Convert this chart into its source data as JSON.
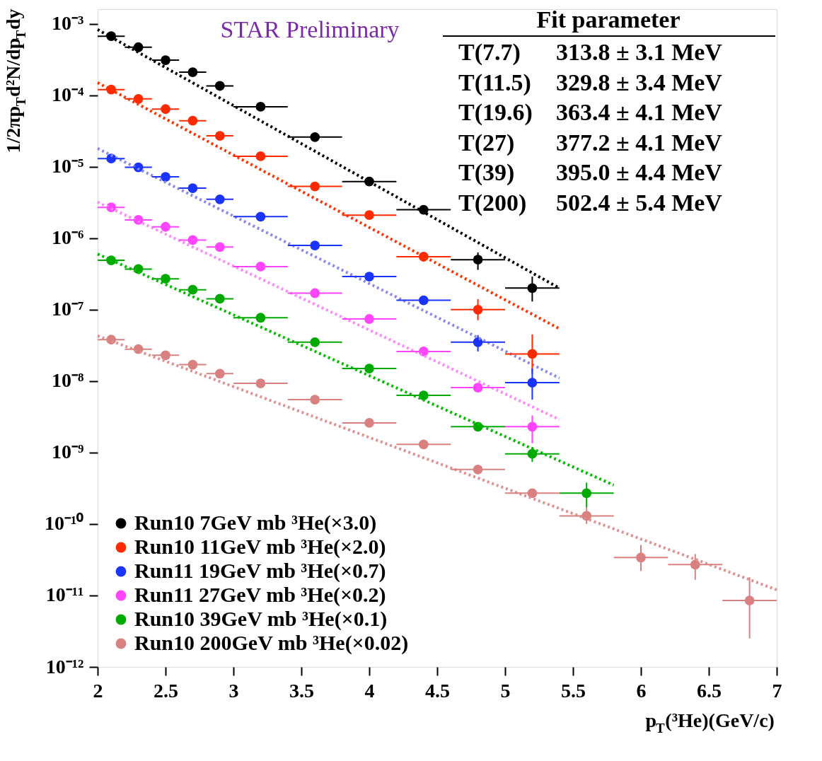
{
  "chart_data": {
    "type": "scatter",
    "xlabel": "p$_{T}$(³He)(GeV/c)",
    "ylabel": "1/2πp$_{T}$d²N/dp$_{T}$dy",
    "log": "y",
    "grid": false,
    "legend": "bottom left",
    "xlim": [
      2,
      7
    ],
    "xticks": [
      2,
      2.5,
      3,
      3.5,
      4,
      4.5,
      5,
      5.5,
      6,
      6.5,
      7
    ],
    "ylim": [
      1e-12,
      0.0016
    ],
    "yticks": [
      {
        "value": 0.001,
        "label": "10⁻³"
      },
      {
        "value": 0.0001,
        "label": "10⁻⁴"
      },
      {
        "value": 1e-05,
        "label": "10⁻⁵"
      },
      {
        "value": 1e-06,
        "label": "10⁻⁶"
      },
      {
        "value": 1e-07,
        "label": "10⁻⁷"
      },
      {
        "value": 1e-08,
        "label": "10⁻⁸"
      },
      {
        "value": 1e-09,
        "label": "10⁻⁹"
      },
      {
        "value": 1e-10,
        "label": "10⁻¹⁰"
      },
      {
        "value": 1e-11,
        "label": "10⁻¹¹"
      },
      {
        "value": 1e-12,
        "label": "10⁻¹²"
      }
    ],
    "annotations": [
      "STAR Preliminary",
      "Fit parameter",
      "T(7.7)",
      "313.8 ± 3.1 MeV",
      "T(11.5)",
      "329.8 ± 3.4 MeV",
      "T(19.6)",
      "363.4 ± 4.1 MeV",
      "T(27)",
      "377.2 ± 4.1 MeV",
      "T(39)",
      "395.0 ± 4.4 MeV",
      "T(200)",
      "502.4 ± 5.4 MeV"
    ],
    "series": [
      {
        "type": "line",
        "color": "#000000",
        "line_style": "dotted",
        "x": [
          2.0,
          5.4
        ],
        "values": [
          0.00083,
          2e-07
        ]
      },
      {
        "type": "line",
        "color": "#ff3300",
        "line_style": "dotted",
        "x": [
          2.0,
          5.4
        ],
        "values": [
          0.00015,
          5.4e-08
        ]
      },
      {
        "type": "line",
        "color": "#8888ee",
        "line_style": "dotted",
        "x": [
          2.0,
          5.4
        ],
        "values": [
          1.8e-05,
          1.1e-08
        ]
      },
      {
        "type": "line",
        "color": "#ff88ff",
        "line_style": "dotted",
        "x": [
          2.0,
          5.4
        ],
        "values": [
          3.2e-06,
          2.9e-09
        ]
      },
      {
        "type": "line",
        "color": "#00bb00",
        "line_style": "dotted",
        "x": [
          2.0,
          5.8
        ],
        "values": [
          6e-07,
          3.5e-10
        ]
      },
      {
        "type": "line",
        "color": "#e09090",
        "line_style": "dotted",
        "x": [
          2.0,
          7.0
        ],
        "values": [
          4.3e-08,
          1.2e-11
        ]
      },
      {
        "marker": "circle",
        "name": "Run10 7GeV mb ³He(×3.0)",
        "color": "#000000",
        "x": [
          2.1,
          2.3,
          2.5,
          2.7,
          2.9,
          3.2,
          3.6,
          4.0,
          4.4,
          4.8,
          5.2
        ],
        "values": [
          0.00067,
          0.00047,
          0.00031,
          0.00021,
          0.000135,
          6.9e-05,
          2.6e-05,
          6.2e-06,
          2.5e-06,
          5e-07,
          2e-07
        ],
        "xerrors": [
          0.1,
          0.1,
          0.1,
          0.1,
          0.1,
          0.2,
          0.2,
          0.2,
          0.2,
          0.2,
          0.2
        ],
        "errors": [
          null,
          null,
          null,
          null,
          null,
          null,
          null,
          null,
          null,
          [
            3.6e-07,
            6.3e-07
          ],
          [
            1.3e-07,
            2.9e-07
          ]
        ]
      },
      {
        "marker": "circle",
        "name": "Run10 11GeV mb ³He(×2.0)",
        "color": "#ff2a00",
        "x": [
          2.1,
          2.3,
          2.5,
          2.7,
          2.9,
          3.2,
          3.6,
          4.0,
          4.4,
          4.8,
          5.2
        ],
        "values": [
          0.00012,
          8.9e-05,
          6.4e-05,
          4.4e-05,
          2.7e-05,
          1.4e-05,
          5.3e-06,
          2.1e-06,
          5.5e-07,
          1e-07,
          2.4e-08
        ],
        "xerrors": [
          0.1,
          0.1,
          0.1,
          0.1,
          0.1,
          0.2,
          0.2,
          0.2,
          0.2,
          0.2,
          0.2
        ],
        "errors": [
          null,
          null,
          null,
          null,
          null,
          null,
          null,
          null,
          null,
          [
            7.1e-08,
            1.4e-07
          ],
          [
            1.26e-08,
            4.5e-08
          ]
        ]
      },
      {
        "marker": "circle",
        "name": "Run11 19GeV mb ³He(×0.7)",
        "color": "#1a33ff",
        "x": [
          2.1,
          2.3,
          2.5,
          2.7,
          2.9,
          3.2,
          3.6,
          4.0,
          4.4,
          4.8,
          5.2
        ],
        "values": [
          1.3e-05,
          9.8e-06,
          7.2e-06,
          5e-06,
          3.5e-06,
          2e-06,
          7.9e-07,
          2.9e-07,
          1.35e-07,
          3.5e-08,
          9.5e-09
        ],
        "xerrors": [
          0.1,
          0.1,
          0.1,
          0.1,
          0.1,
          0.2,
          0.2,
          0.2,
          0.2,
          0.2,
          0.2
        ],
        "errors": [
          null,
          null,
          null,
          null,
          null,
          null,
          null,
          null,
          null,
          [
            2.6e-08,
            4.4e-08
          ],
          [
            5.5e-09,
            1.5e-08
          ]
        ]
      },
      {
        "marker": "circle",
        "name": "Run11 27GeV mb ³He(×0.2)",
        "color": "#ff44ff",
        "x": [
          2.1,
          2.3,
          2.5,
          2.7,
          2.9,
          3.2,
          3.6,
          4.0,
          4.4,
          4.8,
          5.2
        ],
        "values": [
          2.7e-06,
          1.8e-06,
          1.44e-06,
          9.4e-07,
          7.5e-07,
          4e-07,
          1.7e-07,
          7.4e-08,
          2.6e-08,
          8.1e-09,
          2.3e-09
        ],
        "xerrors": [
          0.1,
          0.1,
          0.1,
          0.1,
          0.1,
          0.2,
          0.2,
          0.2,
          0.2,
          0.2,
          0.2
        ],
        "errors": [
          null,
          null,
          null,
          null,
          null,
          null,
          null,
          null,
          null,
          null,
          [
            1.35e-09,
            3.3e-09
          ]
        ]
      },
      {
        "marker": "circle",
        "name": "Run10 39GeV mb ³He(×0.1)",
        "color": "#00aa00",
        "x": [
          2.1,
          2.3,
          2.5,
          2.7,
          2.9,
          3.2,
          3.6,
          4.0,
          4.4,
          4.8,
          5.2,
          5.6
        ],
        "values": [
          4.9e-07,
          3.7e-07,
          2.7e-07,
          1.9e-07,
          1.42e-07,
          7.7e-08,
          3.5e-08,
          1.5e-08,
          6.3e-09,
          2.3e-09,
          9.6e-10,
          2.7e-10
        ],
        "xerrors": [
          0.1,
          0.1,
          0.1,
          0.1,
          0.1,
          0.2,
          0.2,
          0.2,
          0.2,
          0.2,
          0.2,
          0.2
        ],
        "errors": [
          null,
          null,
          null,
          null,
          null,
          null,
          null,
          null,
          null,
          null,
          [
            7.4e-10,
            1.2e-09
          ],
          [
            1.7e-10,
            3.8e-10
          ]
        ]
      },
      {
        "marker": "circle",
        "name": "Run10 200GeV mb ³He(×0.02)",
        "color": "#d98080",
        "x": [
          2.1,
          2.3,
          2.5,
          2.7,
          2.9,
          3.2,
          3.6,
          4.0,
          4.4,
          4.8,
          5.2,
          5.6,
          6.0,
          6.4,
          6.8
        ],
        "values": [
          3.8e-08,
          2.8e-08,
          2.3e-08,
          1.7e-08,
          1.27e-08,
          9.3e-09,
          5.5e-09,
          2.6e-09,
          1.3e-09,
          5.8e-10,
          2.7e-10,
          1.3e-10,
          3.4e-11,
          2.7e-11,
          8.5e-12
        ],
        "xerrors": [
          0.1,
          0.1,
          0.1,
          0.1,
          0.1,
          0.2,
          0.2,
          0.2,
          0.2,
          0.2,
          0.2,
          0.2,
          0.2,
          0.2,
          0.2
        ],
        "errors": [
          null,
          null,
          null,
          null,
          null,
          null,
          null,
          null,
          null,
          null,
          null,
          [
            1e-10,
            1.7e-10
          ],
          [
            2.2e-11,
            5.1e-11
          ],
          [
            1.66e-11,
            3.8e-11
          ],
          [
            2.5e-12,
            1.8e-11
          ]
        ]
      }
    ]
  }
}
